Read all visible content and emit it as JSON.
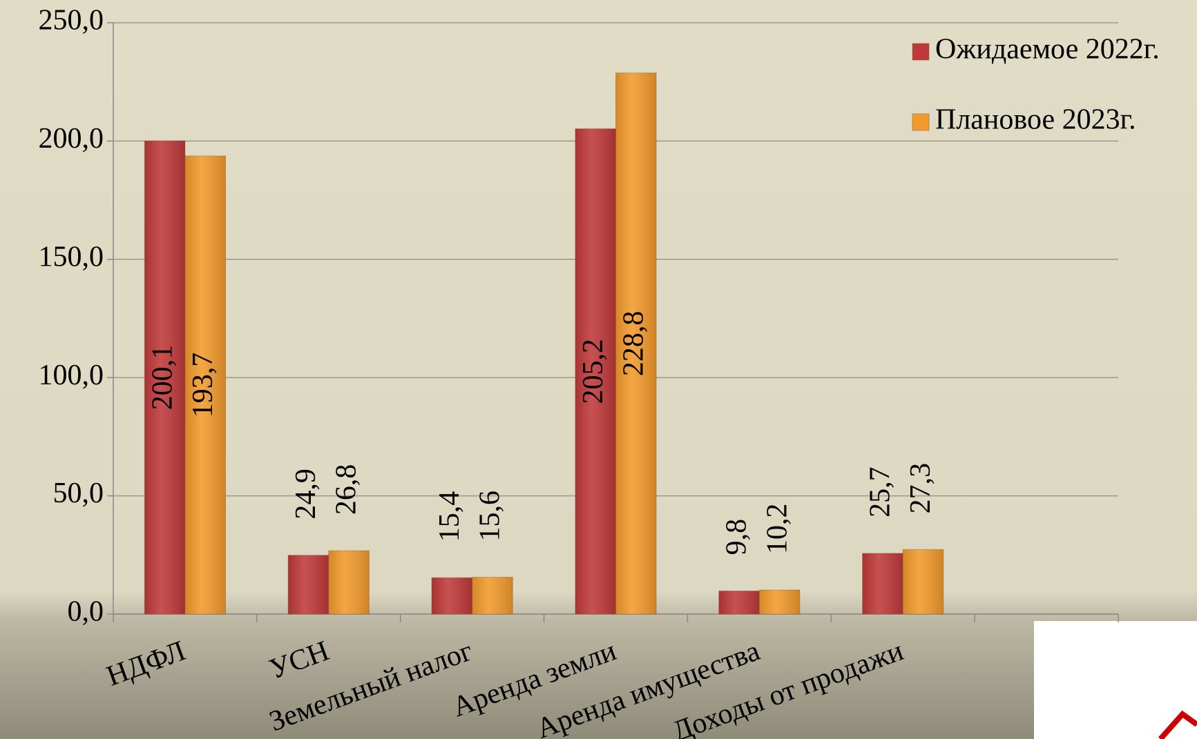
{
  "chart_data": {
    "type": "bar",
    "categories": [
      "НДФЛ",
      "УСН",
      "Земельный налог",
      "Аренда земли",
      "Аренда имущества",
      "Доходы от продажи",
      null
    ],
    "series": [
      {
        "name": "Ожидаемое 2022г.",
        "color": "#c0393a",
        "values": [
          200.1,
          24.9,
          15.4,
          205.2,
          9.8,
          25.7,
          null
        ],
        "value_labels": [
          "200,1",
          "24,9",
          "15,4",
          "205,2",
          "9,8",
          "25,7",
          null
        ]
      },
      {
        "name": "Плановое 2023г.",
        "color": "#f39a2c",
        "values": [
          193.7,
          26.8,
          15.6,
          228.8,
          10.2,
          27.3,
          null
        ],
        "value_labels": [
          "193,7",
          "26,8",
          "15,6",
          "228,8",
          "10,2",
          "27,3",
          null
        ]
      }
    ],
    "ylim": [
      0,
      250
    ],
    "yticks": [
      {
        "value": 0,
        "label": "0,0"
      },
      {
        "value": 50,
        "label": "50,0"
      },
      {
        "value": 100,
        "label": "100,0"
      },
      {
        "value": 150,
        "label": "150,0"
      },
      {
        "value": 200,
        "label": "200,0"
      },
      {
        "value": 250,
        "label": "250,0"
      }
    ],
    "grid": true,
    "legend": "top-right"
  }
}
